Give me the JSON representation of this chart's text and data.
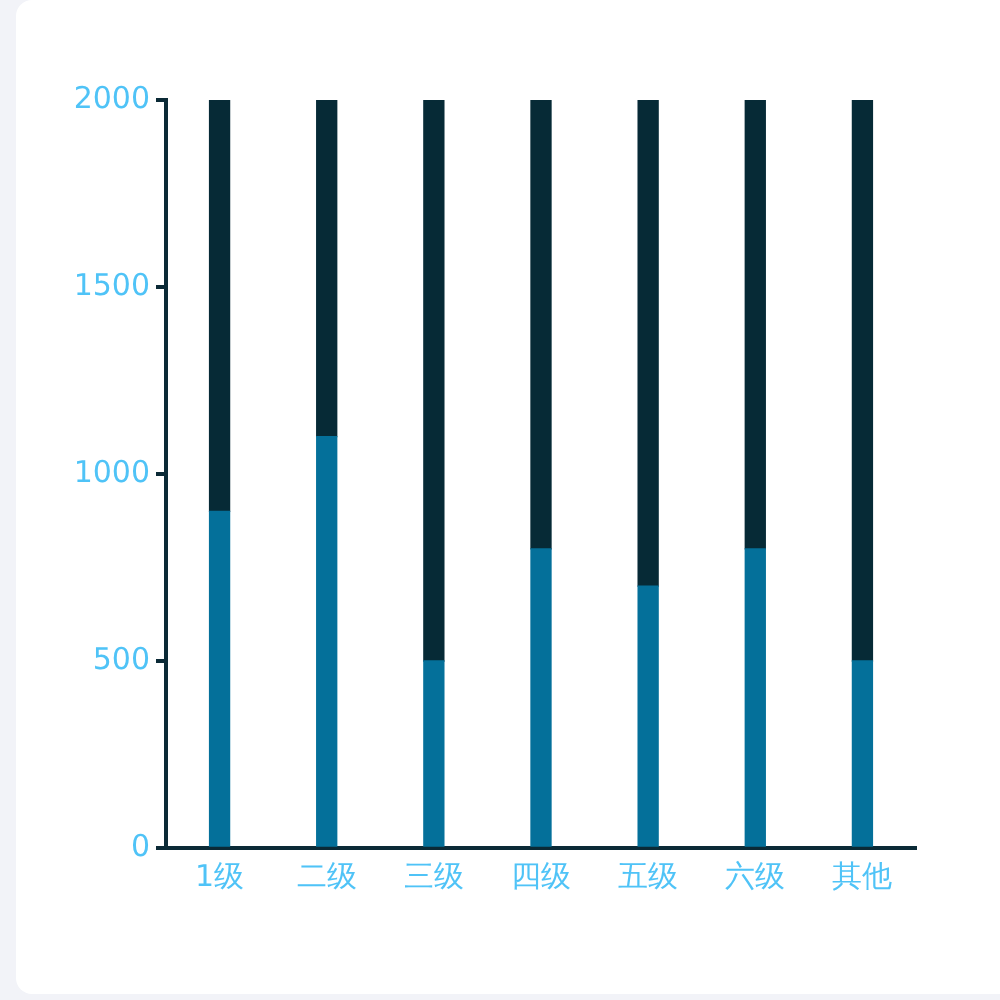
{
  "chart_data": {
    "type": "bar",
    "categories": [
      "1级",
      "二级",
      "三级",
      "四级",
      "五级",
      "六级",
      "其他"
    ],
    "stacked": true,
    "series": [
      {
        "color": "#04709a",
        "values": [
          900,
          1100,
          500,
          800,
          700,
          800,
          500
        ]
      },
      {
        "color": "#062a36",
        "values": [
          1100,
          900,
          1500,
          1200,
          1300,
          1200,
          1500
        ]
      }
    ],
    "ylim": [
      0,
      2000
    ],
    "yticks": [
      0,
      500,
      1000,
      1500,
      2000
    ],
    "grid": false,
    "legend": false
  }
}
